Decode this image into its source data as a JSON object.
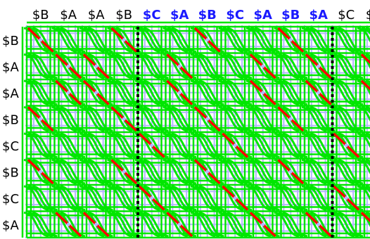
{
  "top_labels": [
    {
      "text": "$B",
      "highlight": false
    },
    {
      "text": "$A",
      "highlight": false
    },
    {
      "text": "$A",
      "highlight": false
    },
    {
      "text": "$B",
      "highlight": false
    },
    {
      "text": "$C",
      "highlight": true
    },
    {
      "text": "$A",
      "highlight": true
    },
    {
      "text": "$B",
      "highlight": true
    },
    {
      "text": "$C",
      "highlight": true
    },
    {
      "text": "$A",
      "highlight": true
    },
    {
      "text": "$B",
      "highlight": true
    },
    {
      "text": "$A",
      "highlight": true
    },
    {
      "text": "$C",
      "highlight": false
    },
    {
      "text": "$A",
      "highlight": false
    }
  ],
  "left_labels": [
    "$B",
    "$A",
    "$A",
    "$B",
    "$C",
    "$B",
    "$C",
    "$A"
  ],
  "colors": {
    "grid": "#b4b4ff",
    "green": "#00e600",
    "red": "#ff0000",
    "highlight_label": "#1a1aff",
    "separator": "#000000"
  },
  "separator_after_columns": [
    4,
    11
  ]
}
